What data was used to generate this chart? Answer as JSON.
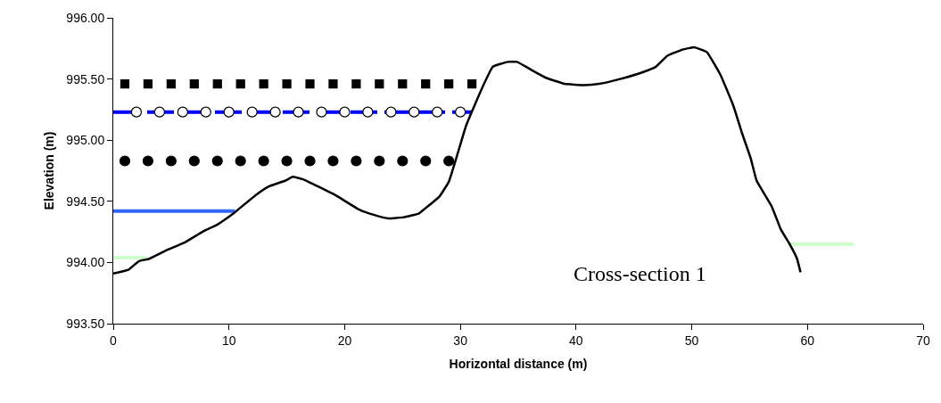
{
  "chart_data": {
    "type": "line",
    "xlabel": "Horizontal distance (m)",
    "ylabel": "Elevation (m)",
    "xlim": [
      0,
      70
    ],
    "xticks": [
      0,
      10,
      20,
      30,
      40,
      50,
      60,
      70
    ],
    "ylim": [
      993.5,
      996.0
    ],
    "yticks": [
      {
        "value": 993.5,
        "label": "993.50"
      },
      {
        "value": 994.0,
        "label": "994.00"
      },
      {
        "value": 994.5,
        "label": "994.50"
      },
      {
        "value": 995.0,
        "label": "995.00"
      },
      {
        "value": 995.5,
        "label": "995.50"
      },
      {
        "value": 996.0,
        "label": "996.00"
      }
    ],
    "annotations": [
      "Cross-section 1"
    ],
    "series": [
      {
        "color": "#0000ff",
        "line_style": "dashed",
        "marker": "none",
        "x": [
          0,
          31
        ],
        "values": [
          995.23,
          995.23
        ]
      },
      {
        "color": "#3366ff",
        "line_style": "solid",
        "marker": "none",
        "x": [
          0,
          10.5
        ],
        "values": [
          994.42,
          994.42
        ]
      },
      {
        "color": "#ccffcc",
        "line_style": "solid",
        "marker": "none",
        "x": [
          0,
          2.9
        ],
        "values": [
          994.04,
          994.04
        ]
      },
      {
        "color": "#ccffcc",
        "line_style": "solid",
        "marker": "none",
        "x": [
          58.4,
          64
        ],
        "values": [
          994.15,
          994.15
        ]
      },
      {
        "type": "scatter",
        "color": "#000000",
        "marker": "square",
        "x": [
          1,
          3,
          5,
          7,
          9,
          11,
          13,
          15,
          17,
          19,
          21,
          23,
          25,
          27,
          29,
          31
        ],
        "values": [
          995.46,
          995.46,
          995.46,
          995.46,
          995.46,
          995.46,
          995.46,
          995.46,
          995.46,
          995.46,
          995.46,
          995.46,
          995.46,
          995.46,
          995.46,
          995.46
        ]
      },
      {
        "type": "scatter",
        "color": "#ffffff",
        "marker": "circle",
        "x": [
          2,
          4,
          6,
          8,
          10,
          12,
          14,
          16,
          18,
          20,
          22,
          24,
          26,
          28,
          30
        ],
        "values": [
          995.23,
          995.23,
          995.23,
          995.23,
          995.23,
          995.23,
          995.23,
          995.23,
          995.23,
          995.23,
          995.23,
          995.23,
          995.23,
          995.23,
          995.23
        ]
      },
      {
        "type": "scatter",
        "color": "#000000",
        "marker": "circle",
        "x": [
          1,
          3,
          5,
          7,
          9,
          11,
          13,
          15,
          17,
          19,
          21,
          23,
          25,
          27,
          29
        ],
        "values": [
          994.83,
          994.83,
          994.83,
          994.83,
          994.83,
          994.83,
          994.83,
          994.83,
          994.83,
          994.83,
          994.83,
          994.83,
          994.83,
          994.83,
          994.83
        ]
      },
      {
        "color": "#000000",
        "line_style": "solid",
        "marker": "none",
        "x": [
          0,
          1.3,
          2.2,
          3.1,
          4.6,
          6.1,
          7.7,
          9.0,
          10.5,
          12.3,
          13.4,
          14.9,
          15.5,
          16.4,
          19.2,
          21.3,
          22.5,
          23.8,
          25.1,
          26.4,
          27.2,
          28.2,
          29.0,
          29.7,
          30.5,
          31.8,
          32.8,
          34.1,
          34.9,
          36.4,
          37.4,
          39.0,
          40.7,
          42.0,
          43.8,
          45.6,
          46.9,
          47.9,
          49.2,
          50.2,
          51.3,
          52.5,
          53.6,
          54.3,
          55.1,
          55.6,
          56.9,
          57.7,
          58.4,
          59.1,
          59.4
        ],
        "values": [
          993.91,
          993.94,
          994.01,
          994.03,
          994.1,
          994.16,
          994.25,
          994.31,
          994.41,
          994.55,
          994.62,
          994.67,
          994.7,
          994.68,
          994.55,
          994.43,
          994.39,
          994.36,
          994.37,
          994.4,
          994.46,
          994.54,
          994.66,
          994.87,
          995.12,
          995.41,
          995.6,
          995.64,
          995.64,
          995.56,
          995.51,
          995.46,
          995.45,
          995.46,
          995.5,
          995.55,
          995.6,
          995.69,
          995.74,
          995.76,
          995.72,
          995.53,
          995.28,
          995.07,
          994.85,
          994.67,
          994.46,
          994.27,
          994.16,
          994.03,
          993.92
        ]
      }
    ]
  }
}
